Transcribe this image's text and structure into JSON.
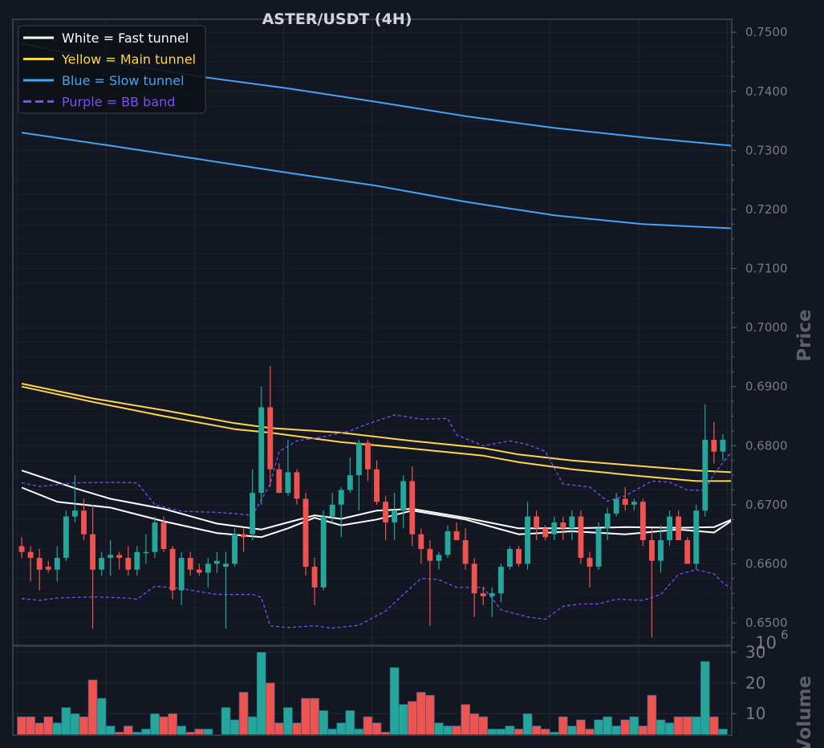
{
  "chart_data": {
    "type": "candlestick",
    "title": "ASTER/USDT (4H)",
    "price_axis": {
      "label": "Price",
      "ylim": [
        0.6462,
        0.7522
      ],
      "ticks": [
        "0.6500",
        "0.6600",
        "0.6700",
        "0.6800",
        "0.6900",
        "0.7000",
        "0.7100",
        "0.7200",
        "0.7300",
        "0.7400",
        "0.7500"
      ]
    },
    "volume_axis": {
      "label": "Volume",
      "multiplier": "10",
      "exponent": "6",
      "ylim": [
        3,
        32
      ],
      "ticks": [
        "10",
        "20",
        "30"
      ]
    },
    "legend": [
      {
        "label": "White = Fast tunnel",
        "color": "#ffffff",
        "dash": false
      },
      {
        "label": "Yellow = Main tunnel",
        "color": "#ffd54f",
        "dash": false
      },
      {
        "label": "Blue = Slow tunnel",
        "color": "#42a5f5",
        "dash": false
      },
      {
        "label": "Purple = BB band",
        "color": "#7c4dff",
        "dash": true
      }
    ],
    "colors": {
      "up": "#26a69a",
      "down": "#ef5350",
      "background": "#131722",
      "grid": "#232734"
    },
    "candles": [
      [
        0.663,
        0.6645,
        0.661,
        0.662
      ],
      [
        0.662,
        0.663,
        0.657,
        0.661
      ],
      [
        0.661,
        0.6625,
        0.6555,
        0.659
      ],
      [
        0.6595,
        0.6605,
        0.6585,
        0.659
      ],
      [
        0.659,
        0.663,
        0.657,
        0.661
      ],
      [
        0.661,
        0.669,
        0.6605,
        0.668
      ],
      [
        0.668,
        0.675,
        0.667,
        0.669
      ],
      [
        0.669,
        0.671,
        0.664,
        0.665
      ],
      [
        0.665,
        0.67,
        0.649,
        0.659
      ],
      [
        0.659,
        0.662,
        0.658,
        0.661
      ],
      [
        0.661,
        0.664,
        0.658,
        0.6615
      ],
      [
        0.6615,
        0.662,
        0.659,
        0.661
      ],
      [
        0.661,
        0.663,
        0.658,
        0.659
      ],
      [
        0.659,
        0.663,
        0.658,
        0.662
      ],
      [
        0.662,
        0.665,
        0.66,
        0.662
      ],
      [
        0.662,
        0.668,
        0.661,
        0.667
      ],
      [
        0.667,
        0.668,
        0.662,
        0.6625
      ],
      [
        0.6625,
        0.663,
        0.654,
        0.6555
      ],
      [
        0.6555,
        0.662,
        0.653,
        0.661
      ],
      [
        0.661,
        0.662,
        0.658,
        0.659
      ],
      [
        0.659,
        0.66,
        0.658,
        0.6585
      ],
      [
        0.6585,
        0.661,
        0.656,
        0.66
      ],
      [
        0.66,
        0.662,
        0.6585,
        0.6605
      ],
      [
        0.6595,
        0.662,
        0.649,
        0.66
      ],
      [
        0.66,
        0.666,
        0.6595,
        0.665
      ],
      [
        0.665,
        0.666,
        0.662,
        0.6645
      ],
      [
        0.665,
        0.676,
        0.664,
        0.672
      ],
      [
        0.672,
        0.69,
        0.67,
        0.6865
      ],
      [
        0.6865,
        0.6935,
        0.673,
        0.676
      ],
      [
        0.676,
        0.677,
        0.672,
        0.672
      ],
      [
        0.672,
        0.681,
        0.6715,
        0.6755
      ],
      [
        0.6755,
        0.676,
        0.67,
        0.671
      ],
      [
        0.671,
        0.672,
        0.658,
        0.6595
      ],
      [
        0.6595,
        0.661,
        0.653,
        0.656
      ],
      [
        0.656,
        0.669,
        0.6555,
        0.668
      ],
      [
        0.668,
        0.672,
        0.667,
        0.67
      ],
      [
        0.67,
        0.673,
        0.6645,
        0.6725
      ],
      [
        0.6725,
        0.678,
        0.672,
        0.675
      ],
      [
        0.675,
        0.681,
        0.669,
        0.6805
      ],
      [
        0.6805,
        0.681,
        0.674,
        0.676
      ],
      [
        0.676,
        0.6775,
        0.67,
        0.6705
      ],
      [
        0.6705,
        0.6715,
        0.664,
        0.667
      ],
      [
        0.667,
        0.672,
        0.664,
        0.669
      ],
      [
        0.669,
        0.675,
        0.666,
        0.674
      ],
      [
        0.674,
        0.6765,
        0.663,
        0.665
      ],
      [
        0.665,
        0.666,
        0.66,
        0.6625
      ],
      [
        0.6625,
        0.664,
        0.6495,
        0.6605
      ],
      [
        0.6605,
        0.662,
        0.659,
        0.6615
      ],
      [
        0.6615,
        0.6665,
        0.661,
        0.6655
      ],
      [
        0.6655,
        0.667,
        0.664,
        0.664
      ],
      [
        0.664,
        0.666,
        0.659,
        0.66
      ],
      [
        0.66,
        0.661,
        0.651,
        0.655
      ],
      [
        0.655,
        0.656,
        0.653,
        0.6545
      ],
      [
        0.6545,
        0.656,
        0.651,
        0.655
      ],
      [
        0.655,
        0.66,
        0.6535,
        0.6595
      ],
      [
        0.6595,
        0.663,
        0.659,
        0.6625
      ],
      [
        0.6625,
        0.663,
        0.6595,
        0.66
      ],
      [
        0.66,
        0.6705,
        0.659,
        0.668
      ],
      [
        0.668,
        0.669,
        0.664,
        0.666
      ],
      [
        0.666,
        0.6665,
        0.664,
        0.6645
      ],
      [
        0.665,
        0.668,
        0.664,
        0.667
      ],
      [
        0.667,
        0.668,
        0.664,
        0.666
      ],
      [
        0.666,
        0.669,
        0.664,
        0.668
      ],
      [
        0.668,
        0.669,
        0.66,
        0.661
      ],
      [
        0.661,
        0.662,
        0.656,
        0.6595
      ],
      [
        0.6595,
        0.667,
        0.659,
        0.666
      ],
      [
        0.666,
        0.6695,
        0.664,
        0.6685
      ],
      [
        0.6685,
        0.672,
        0.668,
        0.671
      ],
      [
        0.671,
        0.673,
        0.669,
        0.67
      ],
      [
        0.67,
        0.671,
        0.669,
        0.6705
      ],
      [
        0.6705,
        0.671,
        0.663,
        0.664
      ],
      [
        0.664,
        0.666,
        0.6475,
        0.6605
      ],
      [
        0.6605,
        0.6665,
        0.6585,
        0.664
      ],
      [
        0.664,
        0.669,
        0.663,
        0.668
      ],
      [
        0.668,
        0.669,
        0.664,
        0.664
      ],
      [
        0.664,
        0.6645,
        0.66,
        0.66
      ],
      [
        0.66,
        0.67,
        0.659,
        0.669
      ],
      [
        0.669,
        0.687,
        0.668,
        0.681
      ],
      [
        0.681,
        0.684,
        0.677,
        0.679
      ],
      [
        0.679,
        0.682,
        0.6775,
        0.681
      ]
    ],
    "volume": [
      9,
      9,
      7,
      9,
      7,
      12,
      10,
      9,
      21,
      15,
      6,
      4,
      6,
      4,
      5,
      10,
      9,
      10,
      6,
      4,
      5,
      5,
      3,
      12,
      8,
      17,
      9,
      30,
      20,
      7,
      12,
      7,
      15,
      15,
      11,
      5,
      7,
      11,
      5,
      9,
      7,
      4,
      25,
      13,
      14,
      17,
      16,
      7,
      6,
      6,
      13,
      10,
      9,
      5,
      5,
      6,
      5,
      10,
      6,
      5,
      4,
      9,
      6,
      8,
      5,
      8,
      9,
      6,
      8,
      9,
      6,
      16,
      8,
      7,
      9,
      9,
      9,
      27,
      9,
      5
    ],
    "series_lines": {
      "fast_upper": [
        [
          0,
          0.6758
        ],
        [
          6,
          0.6728
        ],
        [
          10,
          0.671
        ],
        [
          16,
          0.6693
        ],
        [
          22,
          0.6668
        ],
        [
          27,
          0.6658
        ],
        [
          30,
          0.667
        ],
        [
          33,
          0.6682
        ],
        [
          36,
          0.6676
        ],
        [
          40,
          0.669
        ],
        [
          44,
          0.6693
        ],
        [
          50,
          0.6678
        ],
        [
          56,
          0.666
        ],
        [
          62,
          0.666
        ],
        [
          68,
          0.6662
        ],
        [
          74,
          0.6661
        ],
        [
          78,
          0.6662
        ],
        [
          80,
          0.6675
        ]
      ],
      "fast_lower": [
        [
          0,
          0.6729
        ],
        [
          4,
          0.6705
        ],
        [
          10,
          0.6695
        ],
        [
          16,
          0.6672
        ],
        [
          22,
          0.6652
        ],
        [
          27,
          0.6645
        ],
        [
          30,
          0.666
        ],
        [
          33,
          0.6678
        ],
        [
          36,
          0.6665
        ],
        [
          40,
          0.6675
        ],
        [
          44,
          0.669
        ],
        [
          50,
          0.6675
        ],
        [
          56,
          0.665
        ],
        [
          62,
          0.6655
        ],
        [
          68,
          0.665
        ],
        [
          74,
          0.6658
        ],
        [
          78,
          0.6653
        ],
        [
          80,
          0.6673
        ]
      ],
      "main_upper": [
        [
          0,
          0.6905
        ],
        [
          8,
          0.688
        ],
        [
          16,
          0.686
        ],
        [
          24,
          0.6838
        ],
        [
          28,
          0.683
        ],
        [
          36,
          0.6822
        ],
        [
          44,
          0.6808
        ],
        [
          52,
          0.6796
        ],
        [
          56,
          0.6785
        ],
        [
          62,
          0.6775
        ],
        [
          70,
          0.6765
        ],
        [
          76,
          0.6758
        ],
        [
          80,
          0.6755
        ]
      ],
      "main_lower": [
        [
          0,
          0.69
        ],
        [
          8,
          0.6874
        ],
        [
          16,
          0.685
        ],
        [
          24,
          0.6828
        ],
        [
          28,
          0.6822
        ],
        [
          36,
          0.6806
        ],
        [
          44,
          0.6795
        ],
        [
          52,
          0.6783
        ],
        [
          56,
          0.6772
        ],
        [
          62,
          0.676
        ],
        [
          70,
          0.6748
        ],
        [
          76,
          0.674
        ],
        [
          80,
          0.674
        ]
      ],
      "slow_upper": [
        [
          0,
          0.7481
        ],
        [
          10,
          0.745
        ],
        [
          20,
          0.7425
        ],
        [
          30,
          0.7405
        ],
        [
          40,
          0.7382
        ],
        [
          50,
          0.7358
        ],
        [
          60,
          0.7338
        ],
        [
          70,
          0.7322
        ],
        [
          80,
          0.7308
        ]
      ],
      "slow_lower": [
        [
          0,
          0.733
        ],
        [
          10,
          0.7308
        ],
        [
          20,
          0.7285
        ],
        [
          30,
          0.7262
        ],
        [
          40,
          0.724
        ],
        [
          50,
          0.7213
        ],
        [
          60,
          0.719
        ],
        [
          70,
          0.7175
        ],
        [
          80,
          0.7168
        ]
      ],
      "bb_upper": [
        [
          0,
          0.6737
        ],
        [
          2,
          0.6731
        ],
        [
          6,
          0.6737
        ],
        [
          10,
          0.6738
        ],
        [
          13,
          0.6737
        ],
        [
          15,
          0.67
        ],
        [
          18,
          0.6689
        ],
        [
          22,
          0.6687
        ],
        [
          24,
          0.6685
        ],
        [
          26,
          0.6682
        ],
        [
          28,
          0.6735
        ],
        [
          29,
          0.679
        ],
        [
          31,
          0.6808
        ],
        [
          34,
          0.6815
        ],
        [
          37,
          0.6825
        ],
        [
          39,
          0.6837
        ],
        [
          42,
          0.6852
        ],
        [
          45,
          0.6845
        ],
        [
          48,
          0.6846
        ],
        [
          49,
          0.6818
        ],
        [
          52,
          0.68
        ],
        [
          55,
          0.6808
        ],
        [
          57,
          0.6802
        ],
        [
          59,
          0.679
        ],
        [
          61,
          0.6735
        ],
        [
          64,
          0.673
        ],
        [
          66,
          0.6706
        ],
        [
          68,
          0.6715
        ],
        [
          71,
          0.674
        ],
        [
          73,
          0.6738
        ],
        [
          75,
          0.6725
        ],
        [
          77,
          0.6724
        ],
        [
          78,
          0.6752
        ],
        [
          80,
          0.679
        ]
      ],
      "bb_lower": [
        [
          0,
          0.6541
        ],
        [
          2,
          0.6538
        ],
        [
          4,
          0.6542
        ],
        [
          8,
          0.6544
        ],
        [
          12,
          0.6542
        ],
        [
          13,
          0.654
        ],
        [
          15,
          0.6562
        ],
        [
          18,
          0.6558
        ],
        [
          22,
          0.6548
        ],
        [
          26,
          0.6548
        ],
        [
          27,
          0.6543
        ],
        [
          28,
          0.6495
        ],
        [
          30,
          0.6492
        ],
        [
          33,
          0.6495
        ],
        [
          35,
          0.6491
        ],
        [
          38,
          0.6496
        ],
        [
          41,
          0.652
        ],
        [
          43,
          0.6548
        ],
        [
          45,
          0.6575
        ],
        [
          47,
          0.6573
        ],
        [
          49,
          0.656
        ],
        [
          52,
          0.656
        ],
        [
          54,
          0.6522
        ],
        [
          57,
          0.651
        ],
        [
          59,
          0.6506
        ],
        [
          61,
          0.6528
        ],
        [
          63,
          0.6532
        ],
        [
          65,
          0.6532
        ],
        [
          67,
          0.654
        ],
        [
          70,
          0.6538
        ],
        [
          72,
          0.6548
        ],
        [
          74,
          0.6582
        ],
        [
          76,
          0.659
        ],
        [
          78,
          0.6583
        ],
        [
          79,
          0.6568
        ],
        [
          80,
          0.6558
        ]
      ]
    }
  }
}
